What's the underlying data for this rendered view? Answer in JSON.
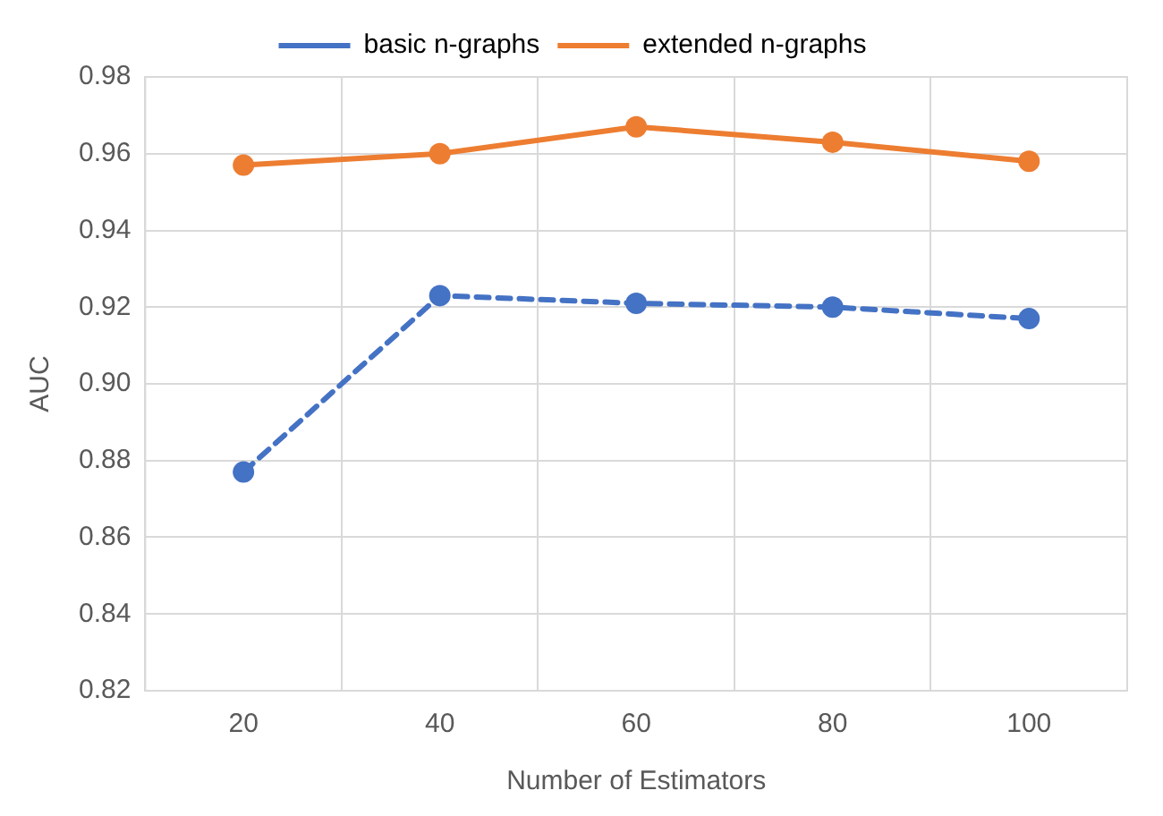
{
  "chart_data": {
    "type": "line",
    "xlabel": "Number of Estimators",
    "ylabel": "AUC",
    "categories": [
      "20",
      "40",
      "60",
      "80",
      "100"
    ],
    "series": [
      {
        "name": "basic n-graphs",
        "color": "#4472c4",
        "line_style": "dashed",
        "values": [
          0.877,
          0.923,
          0.921,
          0.92,
          0.917
        ]
      },
      {
        "name": "extended n-graphs",
        "color": "#ed7d31",
        "line_style": "solid",
        "values": [
          0.957,
          0.96,
          0.967,
          0.963,
          0.958
        ]
      }
    ],
    "ylim": [
      0.82,
      0.98
    ],
    "yticks": [
      0.82,
      0.84,
      0.86,
      0.88,
      {
        "value": 0.9,
        "label": "0.90"
      },
      0.92,
      0.94,
      0.96,
      0.98
    ],
    "grid": true,
    "legend": "top",
    "marker": "circle"
  }
}
